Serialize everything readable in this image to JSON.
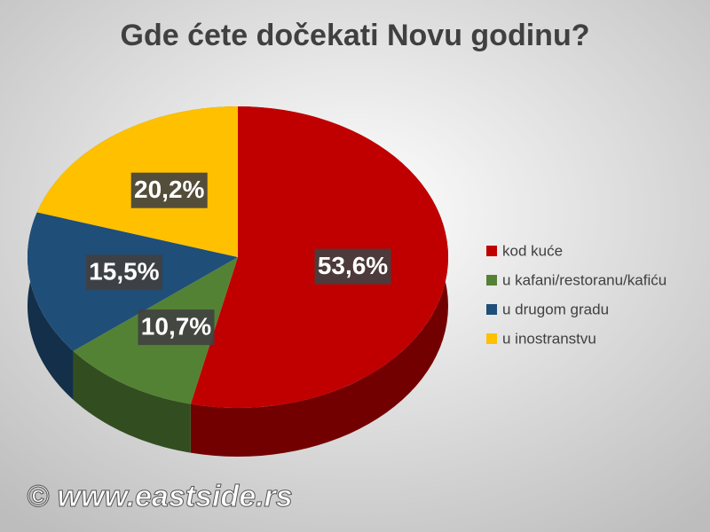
{
  "chart_data": {
    "type": "pie",
    "title": "Gde ćete dočekati Novu godinu?",
    "categories": [
      "kod kuće",
      "u kafani/restoranu/kafiću",
      "u drugom gradu",
      "u inostranstvu"
    ],
    "values": [
      53.6,
      10.7,
      15.5,
      20.2
    ],
    "value_labels": [
      "53,6%",
      "10,7%",
      "15,5%",
      "20,2%"
    ],
    "colors": [
      "#c00000",
      "#548235",
      "#1f4e79",
      "#ffc000"
    ],
    "legend": "right"
  },
  "watermark": "© www.eastside.rs"
}
